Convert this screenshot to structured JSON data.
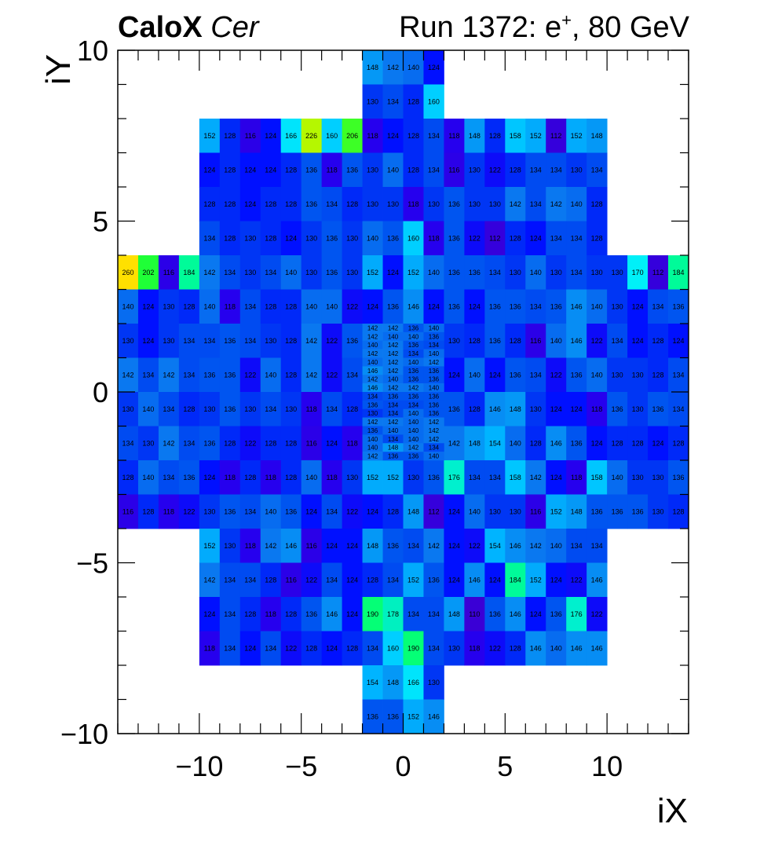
{
  "chart_data": {
    "type": "heatmap",
    "title_left_bold": "CaloX",
    "title_left_italic": "Cer",
    "title_right_main": "Run 1372: e",
    "title_right_sup": "+",
    "title_right_tail": ", 80 GeV",
    "xlabel": "iX",
    "ylabel": "iY",
    "xlim": [
      -14,
      14
    ],
    "ylim": [
      -10,
      10
    ],
    "xticks": [
      "−10",
      "−5",
      "0",
      "5",
      "10"
    ],
    "xtick_values": [
      -10,
      -5,
      0,
      5,
      10
    ],
    "yticks": [
      "−10",
      "−5",
      "0",
      "5",
      "10"
    ],
    "ytick_values": [
      -10,
      -5,
      0,
      5,
      10
    ],
    "colormap": "kBird",
    "colors": {
      "very_low": "#3a00d6",
      "low": "#0010ff",
      "midlow": "#0040f0",
      "mid": "#0a6cf2",
      "midhigh": "#00a6ff",
      "high": "#00e0ff",
      "veryhigh": "#00ff8c",
      "top": "#ffe000"
    },
    "rows": [
      {
        "y": 9.5,
        "x0": -2,
        "values": [
          148,
          142,
          140,
          124
        ]
      },
      {
        "y": 8.5,
        "x0": -2,
        "values": [
          130,
          134,
          128,
          160
        ]
      },
      {
        "y": 7.5,
        "x0": -10,
        "values": [
          152,
          128,
          116,
          124,
          166,
          226,
          160,
          206,
          118,
          124,
          128,
          134,
          118,
          148,
          128,
          158,
          152,
          112,
          152,
          148
        ]
      },
      {
        "y": 6.5,
        "x0": -10,
        "values": [
          124,
          128,
          124,
          124,
          128,
          136,
          118,
          136,
          130,
          140,
          128,
          134,
          116,
          130,
          122,
          128,
          134,
          134,
          130,
          134
        ]
      },
      {
        "y": 5.5,
        "x0": -10,
        "values": [
          128,
          128,
          124,
          128,
          128,
          136,
          134,
          128,
          130,
          130,
          118,
          130,
          136,
          130,
          130,
          142,
          134,
          142,
          140,
          128
        ]
      },
      {
        "y": 4.5,
        "x0": -10,
        "values": [
          134,
          128,
          130,
          128,
          124,
          130,
          136,
          130,
          140,
          136,
          160,
          118,
          136,
          122,
          112,
          128,
          124,
          134,
          134,
          128
        ]
      },
      {
        "y": 3.5,
        "x0": -14,
        "values": [
          260,
          202,
          116,
          184,
          142,
          134,
          130,
          134,
          140,
          130,
          136,
          130,
          152,
          124,
          152,
          140,
          136,
          136,
          134,
          130,
          140,
          130,
          134,
          130,
          130,
          170,
          112,
          184
        ]
      },
      {
        "y": 2.5,
        "x0": -14,
        "values": [
          140,
          124,
          130,
          128,
          140,
          118,
          134,
          128,
          128,
          140,
          140,
          122,
          124,
          136,
          146,
          124,
          136,
          124,
          136,
          136,
          134,
          136,
          146,
          140,
          130,
          124,
          134,
          136
        ]
      },
      {
        "y": 1.5,
        "x0": -14,
        "values": [
          130,
          124,
          130,
          134,
          134,
          136,
          134,
          130,
          128,
          142,
          122,
          136,
          null,
          null,
          null,
          null,
          130,
          128,
          136,
          128,
          116,
          140,
          146,
          122,
          134,
          124,
          128,
          124
        ]
      },
      {
        "y": 0.5,
        "x0": -14,
        "values": [
          142,
          134,
          142,
          134,
          136,
          136,
          122,
          140,
          128,
          142,
          122,
          134,
          null,
          null,
          null,
          null,
          124,
          140,
          124,
          136,
          134,
          122,
          136,
          140,
          130,
          130,
          128,
          134
        ]
      },
      {
        "y": -0.5,
        "x0": -14,
        "values": [
          130,
          140,
          134,
          128,
          130,
          136,
          130,
          134,
          130,
          118,
          134,
          128,
          null,
          null,
          null,
          null,
          136,
          128,
          146,
          148,
          130,
          124,
          124,
          118,
          136,
          130,
          136,
          134
        ]
      },
      {
        "y": -1.5,
        "x0": -14,
        "values": [
          134,
          130,
          142,
          134,
          136,
          128,
          122,
          128,
          128,
          116,
          124,
          118,
          null,
          null,
          null,
          null,
          142,
          148,
          154,
          140,
          128,
          146,
          136,
          124,
          128,
          128,
          124,
          128
        ]
      },
      {
        "y": -2.5,
        "x0": -14,
        "values": [
          128,
          140,
          134,
          136,
          124,
          118,
          128,
          118,
          128,
          140,
          118,
          130,
          152,
          152,
          130,
          136,
          176,
          134,
          134,
          158,
          142,
          124,
          118,
          158,
          140,
          130,
          130,
          136
        ]
      },
      {
        "y": -3.5,
        "x0": -14,
        "values": [
          116,
          128,
          118,
          122,
          130,
          136,
          134,
          140,
          136,
          124,
          134,
          122,
          124,
          128,
          148,
          112,
          124,
          140,
          130,
          130,
          116,
          152,
          148,
          136,
          136,
          136,
          130,
          128
        ]
      },
      {
        "y": -4.5,
        "x0": -10,
        "values": [
          152,
          130,
          118,
          142,
          146,
          116,
          124,
          124,
          148,
          136,
          134,
          142,
          124,
          122,
          154,
          146,
          142,
          140,
          134,
          134
        ]
      },
      {
        "y": -5.5,
        "x0": -10,
        "values": [
          142,
          134,
          134,
          128,
          116,
          122,
          134,
          124,
          128,
          134,
          152,
          136,
          124,
          146,
          124,
          184,
          152,
          124,
          122,
          146
        ]
      },
      {
        "y": -6.5,
        "x0": -10,
        "values": [
          124,
          134,
          128,
          118,
          128,
          136,
          146,
          124,
          190,
          178,
          134,
          134,
          148,
          110,
          136,
          146,
          124,
          136,
          176,
          122
        ]
      },
      {
        "y": -7.5,
        "x0": -10,
        "values": [
          118,
          134,
          124,
          134,
          122,
          128,
          124,
          128,
          134,
          160,
          190,
          134,
          130,
          118,
          122,
          128,
          146,
          140,
          146,
          146
        ]
      },
      {
        "y": -8.5,
        "x0": -2,
        "values": [
          154,
          148,
          166,
          130
        ]
      },
      {
        "y": -9.5,
        "x0": -2,
        "values": [
          136,
          136,
          152,
          146
        ]
      }
    ],
    "fine_rows": [
      {
        "y": 1.75,
        "values": [
          142,
          142,
          136,
          140
        ]
      },
      {
        "y": 1.5,
        "values": [
          142,
          140,
          140,
          136
        ]
      },
      {
        "y": 1.25,
        "values": [
          140,
          142,
          136,
          134
        ]
      },
      {
        "y": 1.0,
        "values": [
          142,
          142,
          134,
          140
        ]
      },
      {
        "y": 0.75,
        "values": [
          140,
          142,
          140,
          142
        ]
      },
      {
        "y": 0.5,
        "values": [
          146,
          142,
          136,
          136
        ]
      },
      {
        "y": 0.25,
        "values": [
          142,
          140,
          136,
          136
        ]
      },
      {
        "y": 0.0,
        "values": [
          146,
          142,
          142,
          140
        ]
      },
      {
        "y": -0.25,
        "values": [
          134,
          136,
          136,
          136
        ]
      },
      {
        "y": -0.5,
        "values": [
          136,
          134,
          134,
          136
        ]
      },
      {
        "y": -0.75,
        "values": [
          130,
          134,
          140,
          136
        ]
      },
      {
        "y": -1.0,
        "values": [
          142,
          142,
          140,
          142
        ]
      },
      {
        "y": -1.25,
        "values": [
          136,
          140,
          140,
          142
        ]
      },
      {
        "y": -1.5,
        "values": [
          140,
          134,
          140,
          142
        ]
      },
      {
        "y": -1.75,
        "values": [
          140,
          148,
          142,
          134
        ]
      },
      {
        "y": -2.0,
        "values": [
          142,
          136,
          136,
          140
        ]
      }
    ]
  }
}
